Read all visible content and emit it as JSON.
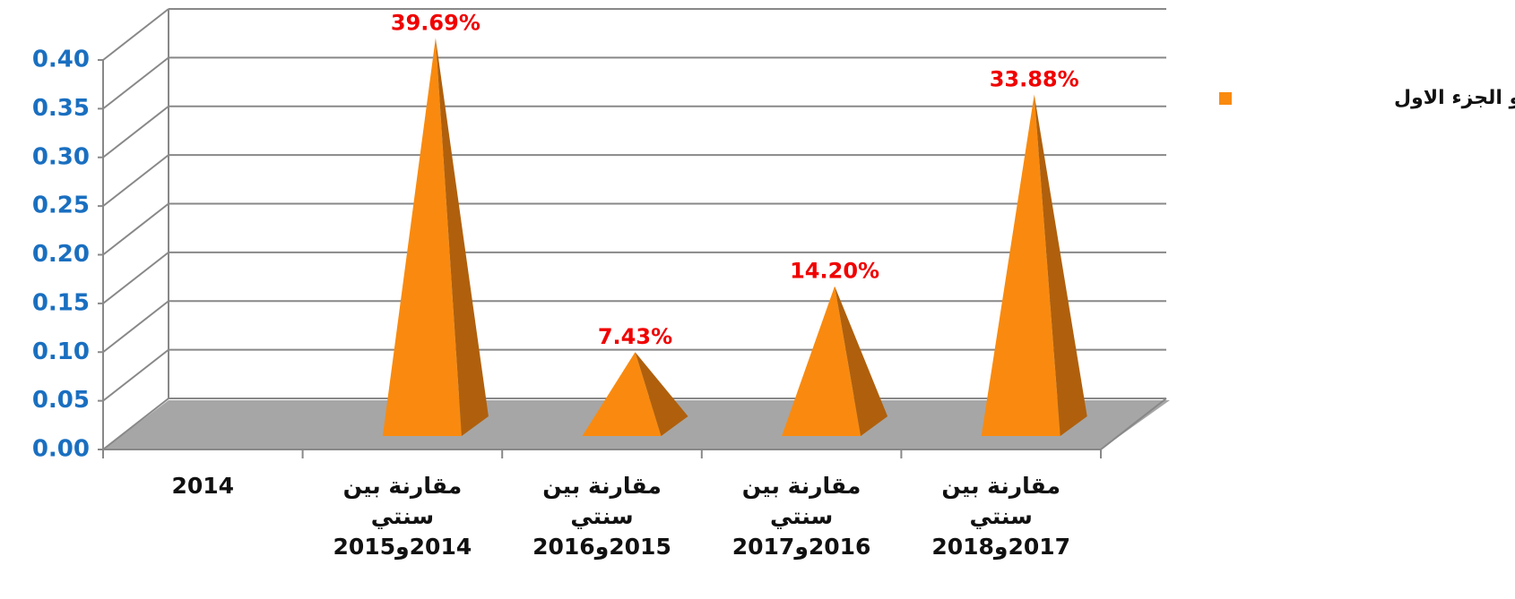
{
  "chart_data": {
    "type": "pyramid",
    "categories": [
      "2014",
      "مقارنة بين سنتي 2014و2015",
      "مقارنة بين سنتي 2015و2016",
      "مقارنة بين سنتي 2016و2017",
      "مقارنة بين سنتي 2017و2018"
    ],
    "series": [
      {
        "name": "نمو الجزء الاول",
        "color": "#f98a0f",
        "values": [
          null,
          0.3969,
          0.0743,
          0.142,
          0.3388
        ],
        "value_labels": [
          null,
          "39.69%",
          "7.43%",
          "14.20%",
          "33.88%"
        ]
      }
    ],
    "ylim": [
      0,
      0.4
    ],
    "yticks": [
      {
        "value": 0,
        "label": "0.00"
      },
      {
        "value": 0.05,
        "label": "0.05"
      },
      {
        "value": 0.1,
        "label": "0.10"
      },
      {
        "value": 0.15,
        "label": "0.15"
      },
      {
        "value": 0.2,
        "label": "0.20"
      },
      {
        "value": 0.25,
        "label": "0.25"
      },
      {
        "value": 0.3,
        "label": "0.30"
      },
      {
        "value": 0.35,
        "label": "0.35"
      },
      {
        "value": 0.4,
        "label": "0.40"
      }
    ],
    "grid": true,
    "legend": "right"
  }
}
